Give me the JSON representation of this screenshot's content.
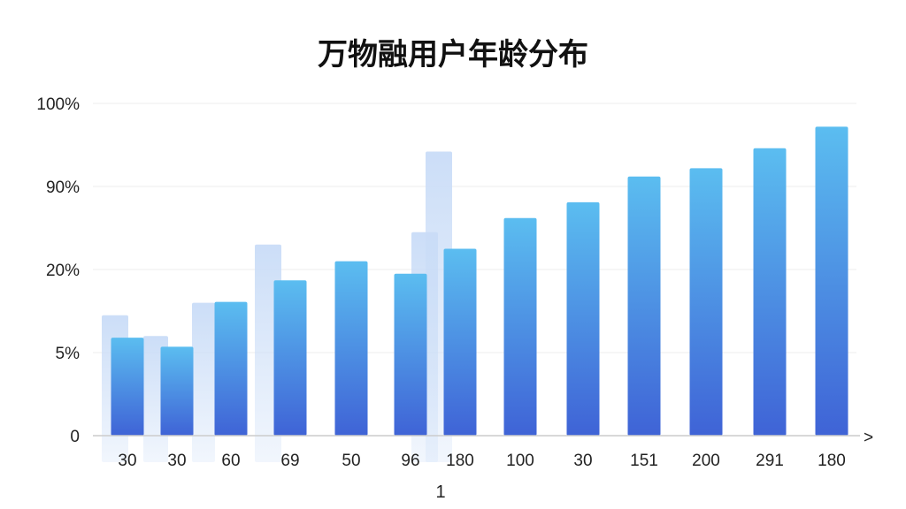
{
  "chart_data": {
    "type": "bar",
    "title": "万物融用户年龄分布",
    "xlabel": "",
    "ylabel": "",
    "y_tick_labels": [
      "0",
      "5%",
      "20%",
      "90%",
      "100%"
    ],
    "y_scale": "categorical-ticks",
    "categories": [
      "30",
      "30",
      "60",
      "69",
      "50",
      "96",
      "180",
      "100",
      "30",
      "151",
      "200",
      "291",
      "180"
    ],
    "series": [
      {
        "values": [
          1.18,
          1.07,
          1.61,
          1.87,
          2.1,
          1.95,
          2.25,
          2.62,
          2.81,
          3.12,
          3.22,
          3.46,
          3.72
        ]
      },
      {
        "style": "faded",
        "values": [
          1.45,
          1.2,
          1.6,
          2.3,
          null,
          2.45,
          3.42,
          null,
          null,
          null,
          null,
          null,
          null
        ]
      }
    ],
    "ylim": [
      0,
      4
    ],
    "grid": true,
    "colors": {
      "bar_top": "#5bbdf0",
      "bar_bottom": "#3f63d6",
      "faded_bar": "#c9dcf7",
      "grid": "#eeeeee",
      "axis": "#cccccc"
    },
    "footnote": "1",
    "axis_arrow": ">"
  }
}
